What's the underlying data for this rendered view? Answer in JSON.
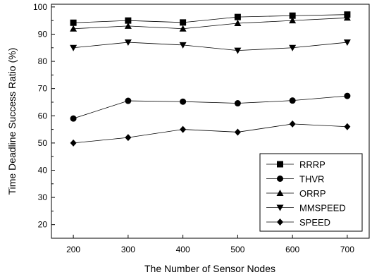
{
  "chart_data": {
    "type": "line",
    "xlabel": "The Number of Sensor Nodes",
    "ylabel": "Time Deadline Success Ratio (%)",
    "x": [
      200,
      300,
      400,
      500,
      600,
      700
    ],
    "xlim": [
      160,
      740
    ],
    "ylim": [
      15,
      101
    ],
    "xticks": [
      200,
      300,
      400,
      500,
      600,
      700
    ],
    "yticks": [
      20,
      30,
      40,
      50,
      60,
      70,
      80,
      90,
      100
    ],
    "grid": false,
    "legend_position": "bottom-right",
    "series": [
      {
        "name": "RRRP",
        "marker": "square",
        "values": [
          94.2,
          95,
          94.3,
          96.3,
          96.8,
          97.2
        ]
      },
      {
        "name": "THVR",
        "marker": "circle",
        "values": [
          59,
          65.5,
          65.2,
          64.6,
          65.6,
          67.3
        ]
      },
      {
        "name": "ORRP",
        "marker": "triangle-up",
        "values": [
          92,
          93,
          92,
          94,
          95,
          96
        ]
      },
      {
        "name": "MMSPEED",
        "marker": "triangle-down",
        "values": [
          85,
          87,
          86,
          84,
          85,
          87
        ]
      },
      {
        "name": "SPEED",
        "marker": "diamond",
        "values": [
          50,
          52,
          55,
          54,
          57,
          56
        ]
      }
    ]
  }
}
